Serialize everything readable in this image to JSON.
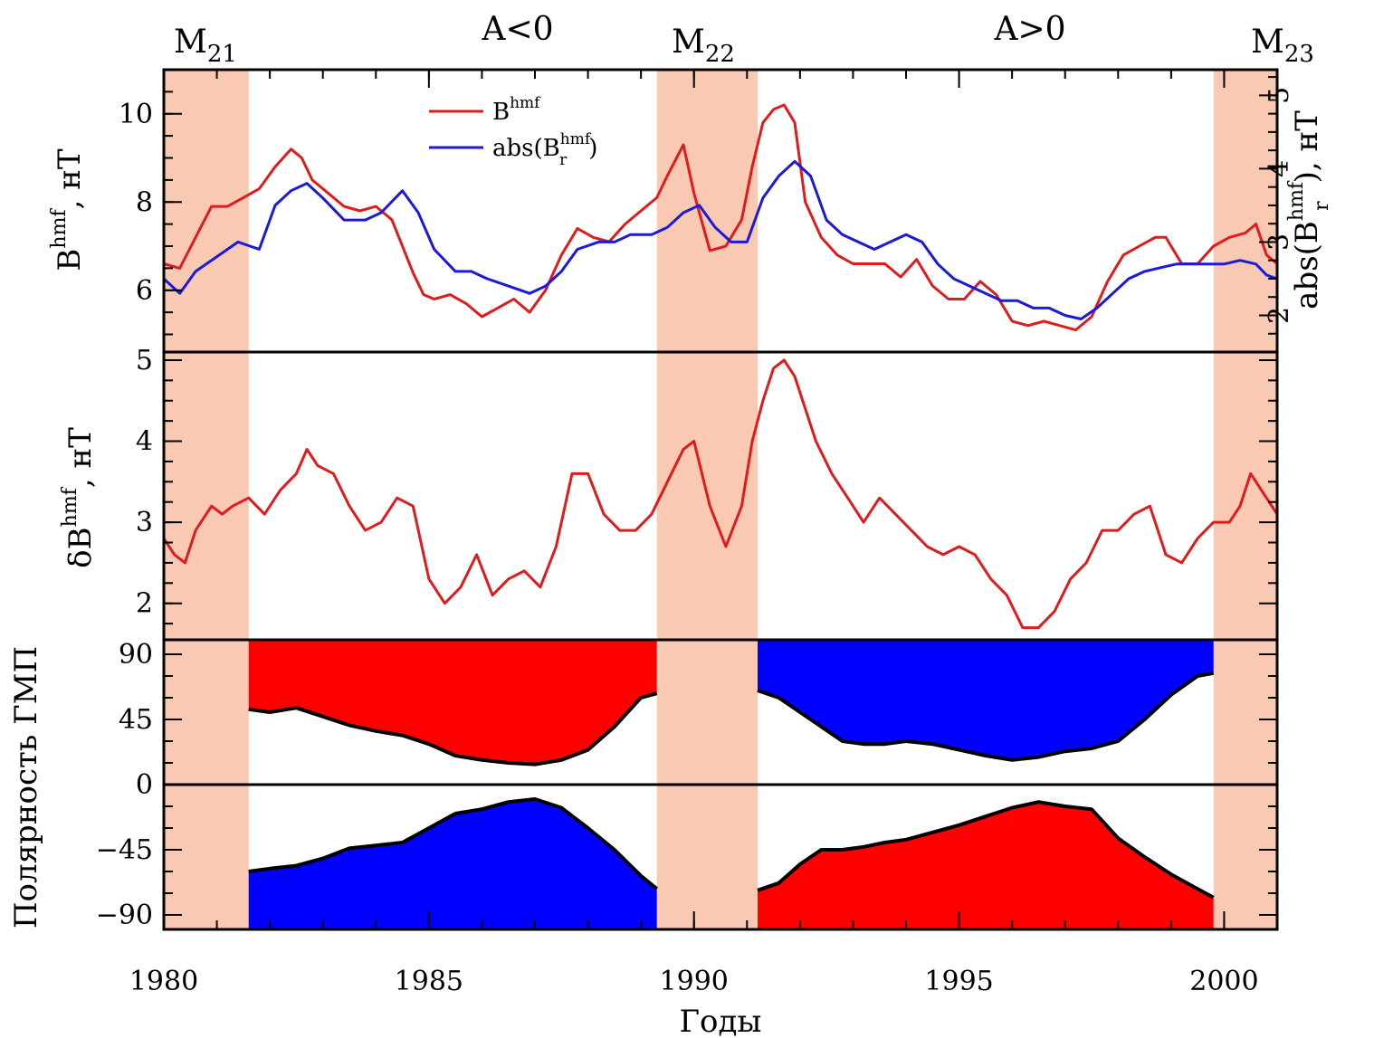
{
  "colors": {
    "red": "#e01b1b",
    "blue": "#1a1ad8",
    "fill_red": "#ff0000",
    "fill_blue": "#0000ff",
    "band": "#f9c9b4",
    "axis": "#000000"
  },
  "top_labels": {
    "m21": {
      "base": "M",
      "sub": "21"
    },
    "a_neg": "A<0",
    "m22": {
      "base": "M",
      "sub": "22"
    },
    "a_pos": "A>0",
    "m23": {
      "base": "M",
      "sub": "23"
    }
  },
  "x_axis": {
    "title": "Годы",
    "range": [
      1980,
      2001
    ],
    "ticks": [
      "1980",
      "1985",
      "1990",
      "1995",
      "2000"
    ]
  },
  "bands": [
    {
      "start": 1980.0,
      "end": 1981.6
    },
    {
      "start": 1989.3,
      "end": 1991.2
    },
    {
      "start": 1999.8,
      "end": 2001.0
    }
  ],
  "chart_data": [
    {
      "type": "line",
      "panel": "top",
      "ylabel": {
        "main": "B",
        "sup": "hmf",
        "rest": ", нТ"
      },
      "ylim": [
        4.6,
        11.0
      ],
      "yticks": [
        "6",
        "8",
        "10"
      ],
      "y2label": {
        "pre": "abs(B",
        "sup": "hmf",
        "sub": "r",
        "rest": "), нТ"
      },
      "y2lim": [
        1.5,
        5.35
      ],
      "y2ticks": [
        "2",
        "3",
        "4",
        "5"
      ],
      "legend": [
        {
          "label": {
            "main": "B",
            "sup": "hmf"
          },
          "color": "red"
        },
        {
          "label": {
            "pre": "abs(B",
            "sup": "hmf",
            "sub": "r",
            "post": ")"
          },
          "color": "blue"
        }
      ],
      "series": [
        {
          "color": "red",
          "axis": "left",
          "x": [
            1980.0,
            1980.3,
            1980.6,
            1980.9,
            1981.2,
            1981.5,
            1981.8,
            1982.1,
            1982.4,
            1982.6,
            1982.8,
            1983.1,
            1983.4,
            1983.7,
            1984.0,
            1984.3,
            1984.5,
            1984.7,
            1984.9,
            1985.1,
            1985.4,
            1985.7,
            1986.0,
            1986.3,
            1986.6,
            1986.9,
            1987.2,
            1987.5,
            1987.8,
            1988.1,
            1988.4,
            1988.7,
            1989.0,
            1989.3,
            1989.5,
            1989.8,
            1990.0,
            1990.3,
            1990.6,
            1990.9,
            1991.1,
            1991.3,
            1991.5,
            1991.7,
            1991.9,
            1992.1,
            1992.4,
            1992.7,
            1993.0,
            1993.3,
            1993.6,
            1993.9,
            1994.2,
            1994.5,
            1994.8,
            1995.1,
            1995.4,
            1995.7,
            1996.0,
            1996.3,
            1996.6,
            1996.9,
            1997.2,
            1997.5,
            1997.8,
            1998.1,
            1998.4,
            1998.7,
            1998.9,
            1999.2,
            1999.5,
            1999.8,
            2000.1,
            2000.4,
            2000.6,
            2000.8,
            2001.0
          ],
          "y": [
            6.6,
            6.5,
            7.2,
            7.9,
            7.9,
            8.1,
            8.3,
            8.8,
            9.2,
            9.0,
            8.5,
            8.2,
            7.9,
            7.8,
            7.9,
            7.6,
            7.0,
            6.4,
            5.9,
            5.8,
            5.9,
            5.7,
            5.4,
            5.6,
            5.8,
            5.5,
            6.0,
            6.8,
            7.4,
            7.2,
            7.1,
            7.5,
            7.8,
            8.1,
            8.6,
            9.3,
            8.2,
            6.9,
            7.0,
            7.6,
            8.8,
            9.8,
            10.1,
            10.2,
            9.8,
            8.0,
            7.2,
            6.8,
            6.6,
            6.6,
            6.6,
            6.3,
            6.7,
            6.1,
            5.8,
            5.8,
            6.2,
            5.9,
            5.3,
            5.2,
            5.3,
            5.2,
            5.1,
            5.4,
            6.2,
            6.8,
            7.0,
            7.2,
            7.2,
            6.6,
            6.6,
            7.0,
            7.2,
            7.3,
            7.5,
            6.8,
            6.6
          ]
        },
        {
          "color": "blue",
          "axis": "right",
          "x": [
            1980.0,
            1980.3,
            1980.6,
            1981.0,
            1981.4,
            1981.8,
            1982.1,
            1982.4,
            1982.7,
            1983.0,
            1983.4,
            1983.8,
            1984.1,
            1984.5,
            1984.8,
            1985.1,
            1985.5,
            1985.8,
            1986.1,
            1986.5,
            1986.9,
            1987.2,
            1987.5,
            1987.8,
            1988.2,
            1988.5,
            1988.8,
            1989.2,
            1989.5,
            1989.8,
            1990.1,
            1990.4,
            1990.7,
            1991.0,
            1991.3,
            1991.6,
            1991.9,
            1992.2,
            1992.5,
            1992.8,
            1993.1,
            1993.4,
            1993.7,
            1994.0,
            1994.3,
            1994.6,
            1994.9,
            1995.2,
            1995.5,
            1995.8,
            1996.1,
            1996.4,
            1996.7,
            1997.0,
            1997.3,
            1997.6,
            1997.9,
            1998.2,
            1998.5,
            1998.8,
            1999.1,
            1999.4,
            1999.7,
            2000.0,
            2000.3,
            2000.6,
            2000.8,
            2001.0
          ],
          "y": [
            2.5,
            2.3,
            2.6,
            2.8,
            3.0,
            2.9,
            3.5,
            3.7,
            3.8,
            3.6,
            3.3,
            3.3,
            3.4,
            3.7,
            3.4,
            2.9,
            2.6,
            2.6,
            2.5,
            2.4,
            2.3,
            2.4,
            2.6,
            2.9,
            3.0,
            3.0,
            3.1,
            3.1,
            3.2,
            3.4,
            3.5,
            3.2,
            3.0,
            3.0,
            3.6,
            3.9,
            4.1,
            3.9,
            3.3,
            3.1,
            3.0,
            2.9,
            3.0,
            3.1,
            3.0,
            2.7,
            2.5,
            2.4,
            2.3,
            2.2,
            2.2,
            2.1,
            2.1,
            2.0,
            1.95,
            2.1,
            2.3,
            2.5,
            2.6,
            2.65,
            2.7,
            2.7,
            2.7,
            2.7,
            2.75,
            2.7,
            2.55,
            2.5
          ]
        }
      ]
    },
    {
      "type": "line",
      "panel": "middle",
      "ylabel": {
        "main": "δB",
        "sup": "hmf",
        "rest": ", нТ"
      },
      "ylim": [
        1.55,
        5.1
      ],
      "yticks": [
        "2",
        "3",
        "4",
        "5"
      ],
      "series": [
        {
          "color": "red",
          "axis": "left",
          "x": [
            1980.0,
            1980.2,
            1980.4,
            1980.6,
            1980.9,
            1981.1,
            1981.3,
            1981.6,
            1981.9,
            1982.2,
            1982.5,
            1982.7,
            1982.9,
            1983.2,
            1983.5,
            1983.8,
            1984.1,
            1984.4,
            1984.7,
            1985.0,
            1985.3,
            1985.6,
            1985.9,
            1986.2,
            1986.5,
            1986.8,
            1987.1,
            1987.4,
            1987.7,
            1988.0,
            1988.3,
            1988.6,
            1988.9,
            1989.2,
            1989.5,
            1989.8,
            1990.0,
            1990.3,
            1990.6,
            1990.9,
            1991.1,
            1991.3,
            1991.5,
            1991.7,
            1991.9,
            1992.1,
            1992.3,
            1992.6,
            1992.9,
            1993.2,
            1993.5,
            1993.8,
            1994.1,
            1994.4,
            1994.7,
            1995.0,
            1995.3,
            1995.6,
            1995.9,
            1996.2,
            1996.5,
            1996.8,
            1997.1,
            1997.4,
            1997.7,
            1998.0,
            1998.3,
            1998.6,
            1998.9,
            1999.2,
            1999.5,
            1999.8,
            2000.1,
            2000.3,
            2000.5,
            2000.7,
            2000.9,
            2001.0
          ],
          "y": [
            2.8,
            2.6,
            2.5,
            2.9,
            3.2,
            3.1,
            3.2,
            3.3,
            3.1,
            3.4,
            3.6,
            3.9,
            3.7,
            3.6,
            3.2,
            2.9,
            3.0,
            3.3,
            3.2,
            2.3,
            2.0,
            2.2,
            2.6,
            2.1,
            2.3,
            2.4,
            2.2,
            2.7,
            3.6,
            3.6,
            3.1,
            2.9,
            2.9,
            3.1,
            3.5,
            3.9,
            4.0,
            3.2,
            2.7,
            3.2,
            4.0,
            4.5,
            4.9,
            5.0,
            4.8,
            4.4,
            4.0,
            3.6,
            3.3,
            3.0,
            3.3,
            3.1,
            2.9,
            2.7,
            2.6,
            2.7,
            2.6,
            2.3,
            2.1,
            1.7,
            1.7,
            1.9,
            2.3,
            2.5,
            2.9,
            2.9,
            3.1,
            3.2,
            2.6,
            2.5,
            2.8,
            3.0,
            3.0,
            3.2,
            3.6,
            3.4,
            3.2,
            3.1
          ]
        }
      ]
    },
    {
      "type": "area",
      "panel": "polarity",
      "ylabel": "Полярность ГМП",
      "ylim": [
        -100,
        100
      ],
      "yticks": [
        "90",
        "45",
        "0",
        "−45",
        "−90"
      ],
      "series": [
        {
          "color": "fill_red",
          "boundary": "upper",
          "x": [
            1981.6,
            1982.0,
            1982.5,
            1983.0,
            1983.5,
            1984.0,
            1984.5,
            1985.0,
            1985.5,
            1986.0,
            1986.5,
            1987.0,
            1987.5,
            1988.0,
            1988.5,
            1989.0,
            1989.3
          ],
          "y": [
            52,
            50,
            53,
            47,
            41,
            37,
            34,
            28,
            20,
            17,
            15,
            14,
            17,
            24,
            40,
            60,
            63
          ]
        },
        {
          "color": "fill_blue",
          "boundary": "lower",
          "x": [
            1981.6,
            1982.0,
            1982.5,
            1983.0,
            1983.5,
            1984.0,
            1984.5,
            1985.0,
            1985.5,
            1986.0,
            1986.5,
            1987.0,
            1987.5,
            1988.0,
            1988.5,
            1989.0,
            1989.3
          ],
          "y": [
            -60,
            -58,
            -56,
            -51,
            -44,
            -42,
            -40,
            -30,
            -20,
            -17,
            -12,
            -10,
            -16,
            -30,
            -45,
            -63,
            -72
          ]
        },
        {
          "color": "fill_blue",
          "boundary": "upper",
          "x": [
            1991.2,
            1991.6,
            1992.0,
            1992.4,
            1992.8,
            1993.2,
            1993.6,
            1994.0,
            1994.5,
            1995.0,
            1995.5,
            1996.0,
            1996.5,
            1997.0,
            1997.5,
            1998.0,
            1998.5,
            1999.0,
            1999.5,
            1999.8
          ],
          "y": [
            65,
            60,
            50,
            40,
            30,
            28,
            28,
            30,
            28,
            24,
            20,
            17,
            19,
            23,
            25,
            30,
            45,
            62,
            75,
            77
          ]
        },
        {
          "color": "fill_red",
          "boundary": "lower",
          "x": [
            1991.2,
            1991.6,
            1992.0,
            1992.4,
            1992.8,
            1993.2,
            1993.6,
            1994.0,
            1994.5,
            1995.0,
            1995.5,
            1996.0,
            1996.5,
            1997.0,
            1997.5,
            1998.0,
            1998.5,
            1999.0,
            1999.5,
            1999.8
          ],
          "y": [
            -73,
            -68,
            -55,
            -45,
            -45,
            -43,
            -40,
            -38,
            -33,
            -28,
            -22,
            -16,
            -12,
            -15,
            -17,
            -37,
            -50,
            -62,
            -72,
            -78
          ]
        }
      ]
    }
  ]
}
